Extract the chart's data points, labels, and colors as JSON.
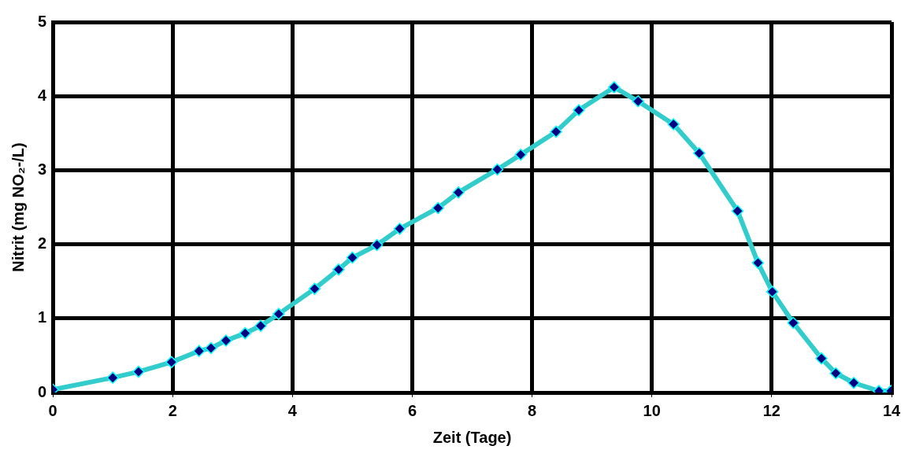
{
  "chart_data": {
    "type": "line",
    "xlabel": "Zeit (Tage)",
    "ylabel": "Nitrit (mg NO₂-/L)",
    "xlim": [
      0,
      14
    ],
    "xticks": [
      0,
      2,
      4,
      6,
      8,
      10,
      12,
      14
    ],
    "ylim": [
      0,
      5
    ],
    "yticks": [
      0,
      1,
      2,
      3,
      4,
      5
    ],
    "grid": true,
    "legend": false,
    "marker": "diamond",
    "line_style": "solid",
    "series": [
      {
        "color": "#33cccc",
        "x": [
          0,
          1.0,
          1.43,
          1.98,
          2.44,
          2.64,
          2.89,
          3.21,
          3.47,
          3.77,
          4.37,
          4.77,
          5.0,
          5.41,
          5.79,
          6.43,
          6.77,
          7.42,
          7.81,
          8.4,
          8.78,
          9.37,
          9.77,
          10.36,
          10.79,
          11.43,
          11.77,
          12.01,
          12.36,
          12.83,
          13.07,
          13.37,
          13.79,
          13.99
        ],
        "values": [
          0.04,
          0.2,
          0.28,
          0.41,
          0.56,
          0.6,
          0.7,
          0.8,
          0.9,
          1.06,
          1.4,
          1.66,
          1.82,
          1.99,
          2.21,
          2.49,
          2.7,
          3.01,
          3.21,
          3.52,
          3.81,
          4.12,
          3.93,
          3.62,
          3.23,
          2.45,
          1.75,
          1.36,
          0.94,
          0.46,
          0.26,
          0.13,
          0.02,
          0.02
        ]
      }
    ]
  }
}
